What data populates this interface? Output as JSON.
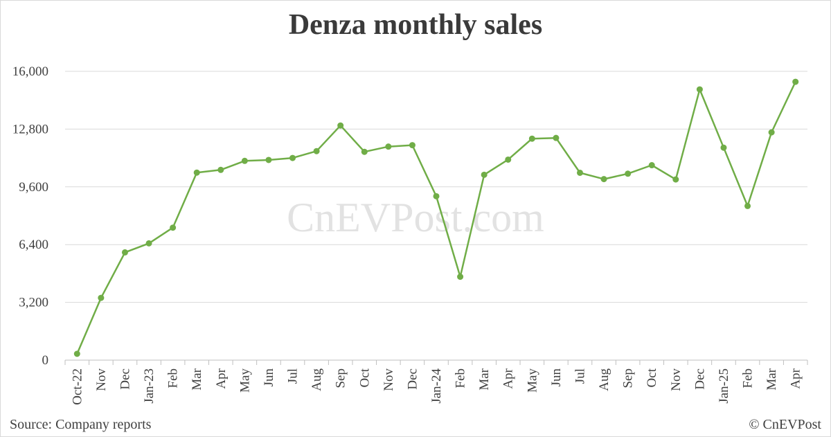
{
  "footer": {
    "source": "Source: Company reports",
    "copyright": "© CnEVPost"
  },
  "watermark": "CnEVPost.com",
  "colors": {
    "line": "#70ad47",
    "grid": "#d9d9d9",
    "text": "#404040"
  },
  "chart_data": {
    "type": "line",
    "title": "Denza monthly sales",
    "xlabel": "",
    "ylabel": "",
    "ylim": [
      0,
      16000
    ],
    "yticks": [
      "0",
      "3,200",
      "6,400",
      "9,600",
      "12,800",
      "16,000"
    ],
    "grid": true,
    "legend": "none",
    "categories": [
      "Oct-22",
      "Nov",
      "Dec",
      "Jan-23",
      "Feb",
      "Mar",
      "Apr",
      "May",
      "Jun",
      "Jul",
      "Aug",
      "Sep",
      "Oct",
      "Nov",
      "Dec",
      "Jan-24",
      "Feb",
      "Mar",
      "Apr",
      "May",
      "Jun",
      "Jul",
      "Aug",
      "Sep",
      "Oct",
      "Nov",
      "Dec",
      "Jan-25",
      "Feb",
      "Mar",
      "Apr"
    ],
    "series": [
      {
        "values": [
          350,
          3450,
          5970,
          6470,
          7340,
          10390,
          10540,
          11040,
          11090,
          11200,
          11580,
          13000,
          11540,
          11830,
          11910,
          9080,
          4620,
          10270,
          11110,
          12270,
          12310,
          10380,
          10030,
          10330,
          10800,
          10010,
          15000,
          11770,
          8540,
          12620,
          15420
        ]
      }
    ]
  }
}
